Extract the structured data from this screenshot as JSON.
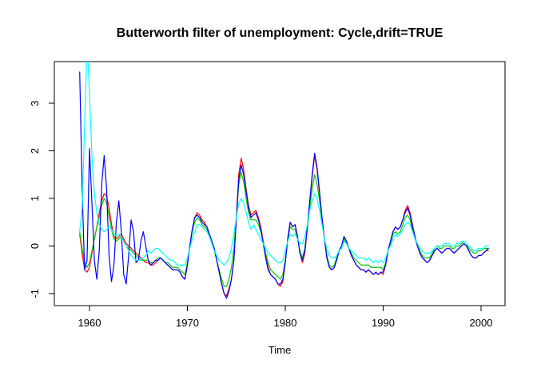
{
  "title": "Butterworth filter of unemployment: Cycle,drift=TRUE",
  "chart_data": {
    "type": "line",
    "title": "Butterworth filter of unemployment: Cycle,drift=TRUE",
    "xlabel": "Time",
    "ylabel": "",
    "grid": false,
    "legend": "none",
    "frame": "box",
    "axis_color": "#000000",
    "xlim": [
      1956.41,
      2002.45
    ],
    "ylim": [
      -1.254,
      3.879
    ],
    "x_ticks": [
      1960,
      1970,
      1980,
      1990,
      2000
    ],
    "y_ticks": [
      -1,
      0,
      1,
      2,
      3
    ],
    "x_start": 1959,
    "x_step": 0.25,
    "series": [
      {
        "name": "cycle-red",
        "color": "#FF0000",
        "values": [
          0.25,
          -0.15,
          -0.5,
          -0.55,
          -0.45,
          -0.15,
          0.15,
          0.4,
          0.7,
          0.95,
          1.1,
          1.05,
          0.8,
          0.45,
          0.2,
          0.15,
          0.2,
          0.25,
          0.15,
          0.05,
          0.0,
          -0.05,
          -0.1,
          -0.15,
          -0.2,
          -0.25,
          -0.3,
          -0.35,
          -0.35,
          -0.4,
          -0.4,
          -0.35,
          -0.3,
          -0.25,
          -0.3,
          -0.35,
          -0.4,
          -0.45,
          -0.5,
          -0.5,
          -0.5,
          -0.55,
          -0.65,
          -0.7,
          -0.4,
          0.0,
          0.35,
          0.6,
          0.7,
          0.65,
          0.55,
          0.5,
          0.4,
          0.25,
          0.1,
          -0.05,
          -0.3,
          -0.55,
          -0.8,
          -1.0,
          -1.05,
          -0.9,
          -0.7,
          -0.3,
          0.6,
          1.5,
          1.85,
          1.6,
          1.2,
          0.85,
          0.65,
          0.7,
          0.75,
          0.6,
          0.4,
          0.1,
          -0.2,
          -0.45,
          -0.6,
          -0.65,
          -0.7,
          -0.8,
          -0.85,
          -0.75,
          -0.35,
          0.15,
          0.5,
          0.4,
          0.45,
          0.2,
          -0.15,
          -0.35,
          -0.15,
          0.35,
          0.9,
          1.45,
          1.9,
          1.6,
          1.1,
          0.6,
          0.15,
          -0.25,
          -0.45,
          -0.5,
          -0.45,
          -0.3,
          -0.1,
          0.0,
          0.2,
          0.1,
          -0.05,
          -0.2,
          -0.3,
          -0.4,
          -0.45,
          -0.5,
          -0.5,
          -0.55,
          -0.5,
          -0.55,
          -0.6,
          -0.55,
          -0.6,
          -0.55,
          -0.6,
          -0.4,
          -0.1,
          0.1,
          0.3,
          0.4,
          0.35,
          0.4,
          0.55,
          0.75,
          0.85,
          0.7,
          0.45,
          0.2,
          0.0,
          -0.15,
          -0.25,
          -0.3,
          -0.35,
          -0.3,
          -0.2,
          -0.1,
          -0.05,
          -0.1,
          -0.15,
          -0.1,
          -0.05,
          -0.05,
          -0.1,
          -0.15,
          -0.1,
          -0.05,
          0.0,
          0.05,
          0.0,
          -0.1,
          -0.2,
          -0.25,
          -0.25,
          -0.2,
          -0.2,
          -0.15,
          -0.1,
          -0.1
        ]
      },
      {
        "name": "cycle-green",
        "color": "#00CD00",
        "values": [
          0.3,
          -0.05,
          -0.35,
          -0.45,
          -0.35,
          -0.1,
          0.15,
          0.4,
          0.6,
          0.85,
          1.0,
          0.9,
          0.65,
          0.35,
          0.15,
          0.1,
          0.15,
          0.2,
          0.1,
          0.0,
          -0.05,
          -0.1,
          -0.15,
          -0.2,
          -0.25,
          -0.3,
          -0.3,
          -0.3,
          -0.3,
          -0.35,
          -0.35,
          -0.3,
          -0.25,
          -0.25,
          -0.3,
          -0.35,
          -0.35,
          -0.4,
          -0.45,
          -0.45,
          -0.45,
          -0.5,
          -0.55,
          -0.6,
          -0.35,
          0.0,
          0.3,
          0.5,
          0.6,
          0.55,
          0.45,
          0.4,
          0.35,
          0.2,
          0.05,
          -0.1,
          -0.3,
          -0.5,
          -0.7,
          -0.85,
          -0.85,
          -0.7,
          -0.45,
          -0.05,
          0.6,
          1.3,
          1.55,
          1.35,
          1.0,
          0.7,
          0.55,
          0.55,
          0.55,
          0.45,
          0.3,
          0.1,
          -0.15,
          -0.35,
          -0.5,
          -0.55,
          -0.6,
          -0.65,
          -0.7,
          -0.6,
          -0.3,
          0.1,
          0.4,
          0.35,
          0.35,
          0.15,
          -0.1,
          -0.25,
          -0.05,
          0.35,
          0.8,
          1.2,
          1.5,
          1.3,
          0.95,
          0.55,
          0.15,
          -0.2,
          -0.4,
          -0.45,
          -0.4,
          -0.25,
          -0.1,
          0.0,
          0.15,
          0.05,
          -0.05,
          -0.15,
          -0.25,
          -0.3,
          -0.35,
          -0.4,
          -0.4,
          -0.4,
          -0.4,
          -0.45,
          -0.45,
          -0.45,
          -0.45,
          -0.45,
          -0.5,
          -0.35,
          -0.1,
          0.05,
          0.25,
          0.3,
          0.25,
          0.3,
          0.45,
          0.6,
          0.65,
          0.55,
          0.35,
          0.15,
          0.0,
          -0.1,
          -0.2,
          -0.25,
          -0.25,
          -0.25,
          -0.15,
          -0.05,
          0.0,
          -0.05,
          -0.05,
          0.0,
          0.0,
          0.0,
          -0.05,
          -0.05,
          0.0,
          0.0,
          0.05,
          0.1,
          0.05,
          -0.05,
          -0.1,
          -0.15,
          -0.15,
          -0.1,
          -0.1,
          -0.05,
          -0.05,
          -0.05
        ]
      },
      {
        "name": "cycle-blue",
        "color": "#0000FF",
        "values": [
          3.66,
          1.2,
          -0.5,
          -0.3,
          2.05,
          0.9,
          -0.3,
          -0.7,
          -0.1,
          1.3,
          1.9,
          1.2,
          -0.2,
          -0.75,
          -0.4,
          0.5,
          0.95,
          0.3,
          -0.6,
          -0.8,
          -0.2,
          0.55,
          0.3,
          -0.35,
          -0.3,
          0.1,
          0.3,
          0.0,
          -0.3,
          -0.4,
          -0.35,
          -0.3,
          -0.3,
          -0.25,
          -0.3,
          -0.35,
          -0.4,
          -0.45,
          -0.5,
          -0.5,
          -0.5,
          -0.55,
          -0.65,
          -0.7,
          -0.4,
          0.0,
          0.35,
          0.6,
          0.65,
          0.6,
          0.5,
          0.45,
          0.4,
          0.25,
          0.1,
          -0.05,
          -0.3,
          -0.55,
          -0.8,
          -1.0,
          -1.1,
          -0.95,
          -0.7,
          -0.3,
          0.55,
          1.4,
          1.7,
          1.5,
          1.15,
          0.8,
          0.6,
          0.65,
          0.7,
          0.55,
          0.35,
          0.05,
          -0.25,
          -0.5,
          -0.6,
          -0.65,
          -0.7,
          -0.8,
          -0.8,
          -0.7,
          -0.35,
          0.15,
          0.5,
          0.4,
          0.45,
          0.2,
          -0.15,
          -0.3,
          -0.1,
          0.4,
          0.95,
          1.5,
          1.95,
          1.65,
          1.15,
          0.6,
          0.15,
          -0.25,
          -0.45,
          -0.5,
          -0.45,
          -0.3,
          -0.1,
          0.0,
          0.2,
          0.1,
          -0.05,
          -0.2,
          -0.3,
          -0.4,
          -0.45,
          -0.5,
          -0.5,
          -0.55,
          -0.5,
          -0.55,
          -0.6,
          -0.55,
          -0.6,
          -0.55,
          -0.55,
          -0.4,
          -0.1,
          0.1,
          0.3,
          0.4,
          0.35,
          0.4,
          0.55,
          0.7,
          0.8,
          0.65,
          0.4,
          0.2,
          0.0,
          -0.15,
          -0.25,
          -0.3,
          -0.35,
          -0.3,
          -0.2,
          -0.1,
          -0.05,
          -0.1,
          -0.15,
          -0.1,
          -0.05,
          -0.05,
          -0.1,
          -0.15,
          -0.1,
          -0.05,
          0.0,
          0.05,
          0.0,
          -0.1,
          -0.2,
          -0.25,
          -0.25,
          -0.2,
          -0.2,
          -0.15,
          -0.1,
          -0.05
        ]
      },
      {
        "name": "cycle-cyan",
        "color": "#00FFFF",
        "values": [
          0.3,
          0.8,
          2.5,
          4.3,
          3.2,
          1.9,
          1.1,
          0.7,
          0.45,
          0.35,
          0.3,
          0.35,
          0.4,
          0.35,
          0.25,
          0.2,
          0.25,
          0.2,
          0.1,
          0.0,
          -0.1,
          -0.2,
          -0.25,
          -0.3,
          -0.3,
          -0.3,
          -0.25,
          -0.2,
          -0.1,
          -0.15,
          -0.1,
          -0.05,
          -0.05,
          -0.1,
          -0.15,
          -0.2,
          -0.25,
          -0.3,
          -0.3,
          -0.35,
          -0.4,
          -0.4,
          -0.4,
          -0.4,
          -0.25,
          -0.05,
          0.15,
          0.3,
          0.45,
          0.45,
          0.4,
          0.35,
          0.3,
          0.2,
          0.05,
          -0.1,
          -0.2,
          -0.3,
          -0.35,
          -0.4,
          -0.35,
          -0.25,
          -0.05,
          0.25,
          0.6,
          0.9,
          1.0,
          0.9,
          0.7,
          0.5,
          0.35,
          0.45,
          0.35,
          0.25,
          0.15,
          0.05,
          -0.05,
          -0.15,
          -0.2,
          -0.25,
          -0.3,
          -0.35,
          -0.35,
          -0.3,
          -0.1,
          0.1,
          0.25,
          0.2,
          0.25,
          0.15,
          0.05,
          0.05,
          0.2,
          0.45,
          0.75,
          0.95,
          1.1,
          1.0,
          0.75,
          0.45,
          0.15,
          -0.05,
          -0.2,
          -0.25,
          -0.25,
          -0.2,
          -0.1,
          -0.05,
          0.1,
          0.05,
          -0.05,
          -0.1,
          -0.15,
          -0.2,
          -0.25,
          -0.25,
          -0.25,
          -0.3,
          -0.25,
          -0.3,
          -0.35,
          -0.3,
          -0.35,
          -0.3,
          -0.35,
          -0.25,
          -0.1,
          0.0,
          0.15,
          0.25,
          0.2,
          0.25,
          0.35,
          0.45,
          0.5,
          0.45,
          0.3,
          0.15,
          0.05,
          -0.05,
          -0.1,
          -0.15,
          -0.15,
          -0.15,
          -0.1,
          -0.05,
          0.0,
          0.0,
          0.0,
          0.05,
          0.05,
          0.05,
          0.0,
          0.0,
          0.05,
          0.05,
          0.1,
          0.1,
          0.05,
          0.0,
          -0.05,
          -0.1,
          -0.1,
          -0.05,
          -0.05,
          -0.05,
          0.0,
          0.0
        ]
      }
    ]
  }
}
